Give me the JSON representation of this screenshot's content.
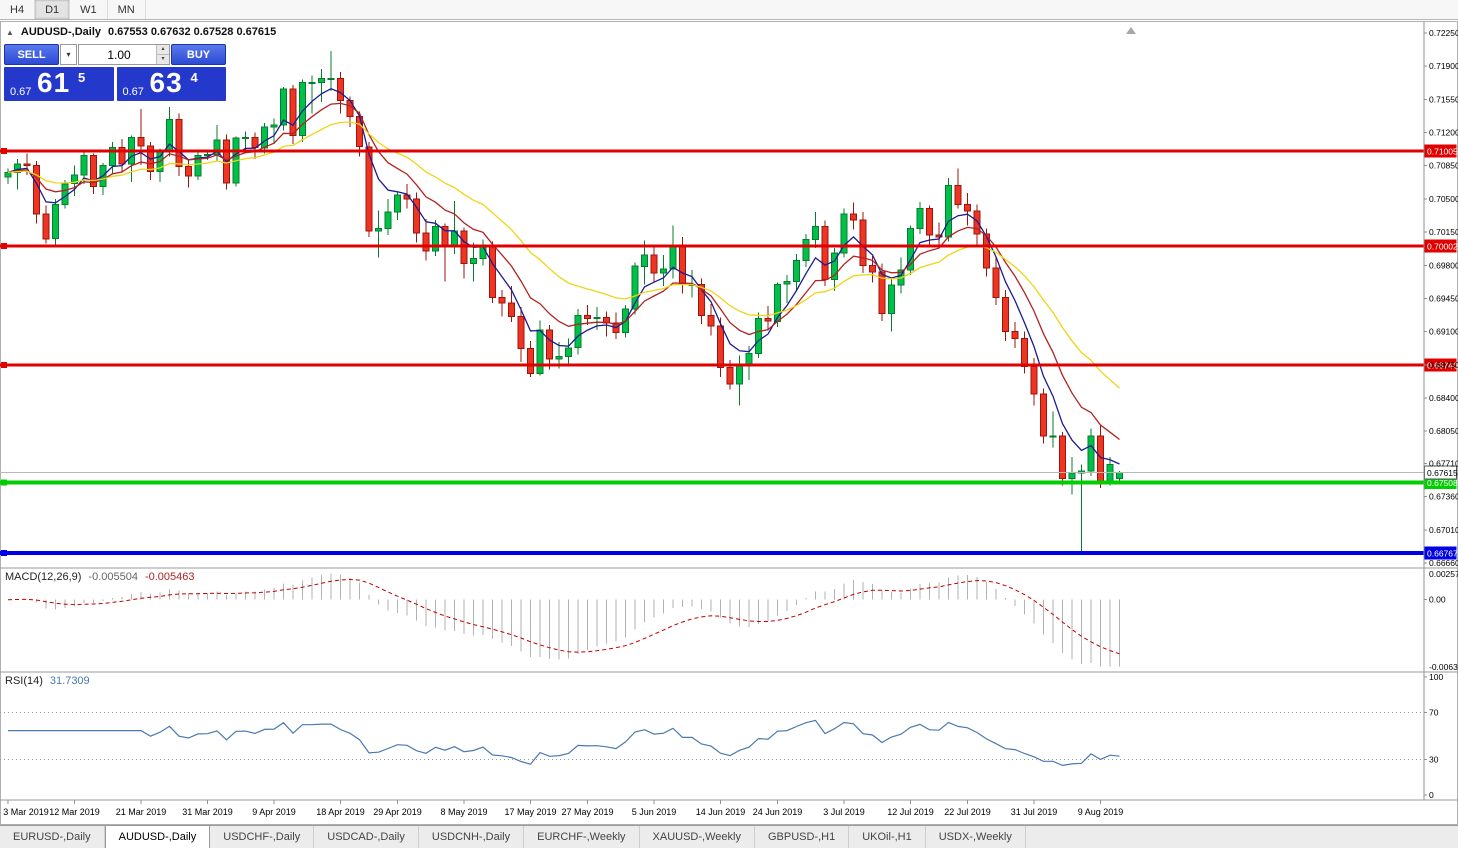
{
  "colors": {
    "candle_up_fill": "#00c04a",
    "candle_up_border": "#077c2e",
    "candle_down_fill": "#ee3524",
    "candle_down_border": "#9c150b",
    "ma_fast": "#1c1c90",
    "ma_mid": "#b22222",
    "ma_slow": "#efd417",
    "red_line": "#e00000",
    "green_line": "#00ce00",
    "blue_line": "#0000e6",
    "macd_bar": "#b2b2b2",
    "macd_signal": "#c00000",
    "rsi_line": "#4a7aad",
    "trade_blue": "#2438cc"
  },
  "toolbar": {
    "buttons": [
      {
        "label": "H4",
        "active": false
      },
      {
        "label": "D1",
        "active": true
      },
      {
        "label": "W1",
        "active": false
      },
      {
        "label": "MN",
        "active": false
      }
    ]
  },
  "symbol_header": {
    "symbol": "AUDUSD-,Daily",
    "ohlc": "0.67553 0.67632 0.67528 0.67615"
  },
  "one_click": {
    "sell_label": "SELL",
    "buy_label": "BUY",
    "volume": "1.00",
    "sell_price": {
      "prefix": "0.67",
      "big": "61",
      "sup": "5"
    },
    "buy_price": {
      "prefix": "0.67",
      "big": "63",
      "sup": "4"
    }
  },
  "indicators": {
    "macd": {
      "name": "MACD(12,26,9)",
      "main_value": "-0.005504",
      "signal_value": "-0.005463",
      "params": {
        "fast": 12,
        "slow": 26,
        "signal": 9
      },
      "axis_labels": {
        "top": "0.002574",
        "zero": "0.00",
        "bottom": "-0.006320"
      }
    },
    "rsi": {
      "name": "RSI(14)",
      "value": "31.7309",
      "period": 14,
      "levels": [
        70,
        30
      ],
      "axis_labels": [
        "100",
        "70",
        "30",
        "0"
      ]
    }
  },
  "tabs": {
    "items": [
      {
        "label": "EURUSD-,Daily",
        "active": false
      },
      {
        "label": "AUDUSD-,Daily",
        "active": true
      },
      {
        "label": "USDCHF-,Daily",
        "active": false
      },
      {
        "label": "USDCAD-,Daily",
        "active": false
      },
      {
        "label": "USDCNH-,Daily",
        "active": false
      },
      {
        "label": "EURCHF-,Weekly",
        "active": false
      },
      {
        "label": "XAUUSD-,Weekly",
        "active": false
      },
      {
        "label": "GBPUSD-,H1",
        "active": false
      },
      {
        "label": "UKOil-,H1",
        "active": false
      },
      {
        "label": "USDX-,Weekly",
        "active": false
      }
    ]
  },
  "chart_data": {
    "type": "candlestick",
    "title": "AUDUSD-,Daily",
    "current_price": {
      "value": 0.67615,
      "label": "0.67615"
    },
    "y_axis": {
      "top_value": 0.7225,
      "bottom_value": 0.6666,
      "step": 0.0035,
      "labels": [
        "0.72250",
        "0.71900",
        "0.71550",
        "0.71200",
        "0.70850",
        "0.70500",
        "0.70150",
        "0.69800",
        "0.69450",
        "0.69100",
        "0.68750",
        "0.68400",
        "0.68050",
        "0.67710",
        "0.67360",
        "0.67010",
        "0.66660"
      ]
    },
    "hlines": [
      {
        "price": 0.71005,
        "label": "0.71005",
        "color_key": "red_line",
        "width": 3
      },
      {
        "price": 0.70002,
        "label": "0.70002",
        "color_key": "red_line",
        "width": 3
      },
      {
        "price": 0.68746,
        "label": "0.68746",
        "color_key": "red_line",
        "width": 3
      },
      {
        "price": 0.67508,
        "label": "0.67508",
        "color_key": "green_line",
        "width": 4
      },
      {
        "price": 0.66767,
        "label": "0.66767",
        "color_key": "blue_line",
        "width": 4
      }
    ],
    "moving_averages": [
      {
        "type": "ema",
        "period": 5,
        "color_key": "ma_fast"
      },
      {
        "type": "ema",
        "period": 10,
        "color_key": "ma_mid"
      },
      {
        "type": "ema",
        "period": 21,
        "color_key": "ma_slow"
      }
    ],
    "x_labels": [
      {
        "text": "3 Mar 2019",
        "i": 0
      },
      {
        "text": "12 Mar 2019",
        "i": 7
      },
      {
        "text": "21 Mar 2019",
        "i": 14
      },
      {
        "text": "31 Mar 2019",
        "i": 21
      },
      {
        "text": "9 Apr 2019",
        "i": 28
      },
      {
        "text": "18 Apr 2019",
        "i": 35
      },
      {
        "text": "29 Apr 2019",
        "i": 41
      },
      {
        "text": "8 May 2019",
        "i": 48
      },
      {
        "text": "17 May 2019",
        "i": 55
      },
      {
        "text": "27 May 2019",
        "i": 61
      },
      {
        "text": "5 Jun 2019",
        "i": 68
      },
      {
        "text": "14 Jun 2019",
        "i": 75
      },
      {
        "text": "24 Jun 2019",
        "i": 81
      },
      {
        "text": "3 Jul 2019",
        "i": 88
      },
      {
        "text": "12 Jul 2019",
        "i": 95
      },
      {
        "text": "22 Jul 2019",
        "i": 101
      },
      {
        "text": "31 Jul 2019",
        "i": 108
      },
      {
        "text": "9 Aug 2019",
        "i": 115
      }
    ],
    "ohlc": [
      [
        0.7073,
        0.7082,
        0.7066,
        0.7078
      ],
      [
        0.7078,
        0.7092,
        0.706,
        0.7087
      ],
      [
        0.7087,
        0.7098,
        0.7075,
        0.7085
      ],
      [
        0.7085,
        0.709,
        0.7024,
        0.7034
      ],
      [
        0.7034,
        0.7043,
        0.7003,
        0.7008
      ],
      [
        0.7008,
        0.705,
        0.7002,
        0.7044
      ],
      [
        0.7044,
        0.707,
        0.704,
        0.7066
      ],
      [
        0.7066,
        0.7085,
        0.7053,
        0.7075
      ],
      [
        0.7075,
        0.7099,
        0.7066,
        0.7096
      ],
      [
        0.7096,
        0.7098,
        0.7055,
        0.7063
      ],
      [
        0.7063,
        0.7088,
        0.7054,
        0.7085
      ],
      [
        0.7085,
        0.711,
        0.7076,
        0.7104
      ],
      [
        0.7104,
        0.7113,
        0.7078,
        0.7087
      ],
      [
        0.7087,
        0.7117,
        0.7068,
        0.7115
      ],
      [
        0.7115,
        0.7145,
        0.7086,
        0.7106
      ],
      [
        0.7106,
        0.711,
        0.707,
        0.7079
      ],
      [
        0.7079,
        0.7103,
        0.7068,
        0.71
      ],
      [
        0.71,
        0.7147,
        0.7095,
        0.7134
      ],
      [
        0.7134,
        0.714,
        0.7074,
        0.7084
      ],
      [
        0.7084,
        0.7092,
        0.7062,
        0.7074
      ],
      [
        0.7074,
        0.71,
        0.707,
        0.7096
      ],
      [
        0.7096,
        0.7101,
        0.7091,
        0.7097
      ],
      [
        0.7097,
        0.7128,
        0.709,
        0.7112
      ],
      [
        0.7112,
        0.7118,
        0.706,
        0.7067
      ],
      [
        0.7067,
        0.7116,
        0.7063,
        0.7114
      ],
      [
        0.7114,
        0.7121,
        0.7098,
        0.7115
      ],
      [
        0.7115,
        0.712,
        0.7092,
        0.7104
      ],
      [
        0.7104,
        0.713,
        0.7098,
        0.7126
      ],
      [
        0.7126,
        0.7135,
        0.7108,
        0.7128
      ],
      [
        0.7128,
        0.7168,
        0.7122,
        0.7166
      ],
      [
        0.7166,
        0.717,
        0.7108,
        0.7117
      ],
      [
        0.7117,
        0.7176,
        0.711,
        0.7173
      ],
      [
        0.7173,
        0.718,
        0.714,
        0.7173
      ],
      [
        0.7173,
        0.7187,
        0.7152,
        0.7177
      ],
      [
        0.7177,
        0.7206,
        0.7164,
        0.7177
      ],
      [
        0.7177,
        0.7184,
        0.714,
        0.7154
      ],
      [
        0.7154,
        0.7158,
        0.7126,
        0.7137
      ],
      [
        0.7137,
        0.7142,
        0.7095,
        0.7105
      ],
      [
        0.7105,
        0.711,
        0.701,
        0.7016
      ],
      [
        0.7016,
        0.7038,
        0.6988,
        0.7019
      ],
      [
        0.7019,
        0.705,
        0.7012,
        0.7036
      ],
      [
        0.7036,
        0.7058,
        0.7028,
        0.7054
      ],
      [
        0.7054,
        0.7066,
        0.704,
        0.705
      ],
      [
        0.705,
        0.7057,
        0.7004,
        0.7014
      ],
      [
        0.7014,
        0.7029,
        0.6985,
        0.6995
      ],
      [
        0.6995,
        0.7028,
        0.699,
        0.7021
      ],
      [
        0.7021,
        0.7024,
        0.6963,
        0.7001
      ],
      [
        0.7001,
        0.7048,
        0.6992,
        0.7016
      ],
      [
        0.7016,
        0.702,
        0.6966,
        0.6982
      ],
      [
        0.6982,
        0.7004,
        0.6963,
        0.6987
      ],
      [
        0.6987,
        0.7007,
        0.698,
        0.7001
      ],
      [
        0.7001,
        0.7005,
        0.694,
        0.6946
      ],
      [
        0.6946,
        0.6954,
        0.6926,
        0.694
      ],
      [
        0.694,
        0.6958,
        0.692,
        0.6926
      ],
      [
        0.6926,
        0.6936,
        0.6878,
        0.6892
      ],
      [
        0.6892,
        0.69,
        0.6862,
        0.6866
      ],
      [
        0.6866,
        0.6922,
        0.6864,
        0.6912
      ],
      [
        0.6912,
        0.6917,
        0.687,
        0.6881
      ],
      [
        0.6881,
        0.6899,
        0.6871,
        0.6884
      ],
      [
        0.6884,
        0.6903,
        0.6875,
        0.6893
      ],
      [
        0.6893,
        0.6934,
        0.6886,
        0.6927
      ],
      [
        0.6927,
        0.6938,
        0.6917,
        0.6924
      ],
      [
        0.6924,
        0.6936,
        0.6912,
        0.6925
      ],
      [
        0.6925,
        0.6931,
        0.6905,
        0.6919
      ],
      [
        0.6919,
        0.693,
        0.6902,
        0.6909
      ],
      [
        0.6909,
        0.6938,
        0.6904,
        0.6934
      ],
      [
        0.6934,
        0.6983,
        0.6928,
        0.6979
      ],
      [
        0.6979,
        0.7006,
        0.696,
        0.6991
      ],
      [
        0.6991,
        0.7,
        0.6962,
        0.6972
      ],
      [
        0.6972,
        0.6991,
        0.6958,
        0.6976
      ],
      [
        0.6976,
        0.7022,
        0.6966,
        0.7
      ],
      [
        0.7,
        0.701,
        0.695,
        0.696
      ],
      [
        0.696,
        0.6975,
        0.6946,
        0.696
      ],
      [
        0.696,
        0.6966,
        0.6918,
        0.6927
      ],
      [
        0.6927,
        0.6939,
        0.6906,
        0.6916
      ],
      [
        0.6916,
        0.6925,
        0.6862,
        0.6872
      ],
      [
        0.6872,
        0.688,
        0.6849,
        0.6855
      ],
      [
        0.6855,
        0.6885,
        0.6832,
        0.6875
      ],
      [
        0.6875,
        0.6895,
        0.6859,
        0.6887
      ],
      [
        0.6887,
        0.693,
        0.6882,
        0.6924
      ],
      [
        0.6924,
        0.6937,
        0.6911,
        0.6921
      ],
      [
        0.6921,
        0.6962,
        0.6915,
        0.696
      ],
      [
        0.696,
        0.697,
        0.694,
        0.6963
      ],
      [
        0.6963,
        0.6992,
        0.6953,
        0.6985
      ],
      [
        0.6985,
        0.7013,
        0.6978,
        0.7007
      ],
      [
        0.7007,
        0.7036,
        0.6998,
        0.7021
      ],
      [
        0.7021,
        0.7027,
        0.6958,
        0.6965
      ],
      [
        0.6965,
        0.6998,
        0.6953,
        0.6993
      ],
      [
        0.6993,
        0.704,
        0.6988,
        0.7034
      ],
      [
        0.7034,
        0.7046,
        0.7018,
        0.7028
      ],
      [
        0.7028,
        0.7036,
        0.6972,
        0.698
      ],
      [
        0.698,
        0.699,
        0.6962,
        0.6973
      ],
      [
        0.6973,
        0.6982,
        0.6921,
        0.6929
      ],
      [
        0.6929,
        0.6965,
        0.691,
        0.6959
      ],
      [
        0.6959,
        0.6988,
        0.695,
        0.6975
      ],
      [
        0.6975,
        0.7022,
        0.697,
        0.7019
      ],
      [
        0.7019,
        0.7047,
        0.7013,
        0.704
      ],
      [
        0.704,
        0.7043,
        0.7001,
        0.7012
      ],
      [
        0.7012,
        0.7025,
        0.7,
        0.701
      ],
      [
        0.701,
        0.7072,
        0.7005,
        0.7064
      ],
      [
        0.7064,
        0.7082,
        0.704,
        0.7044
      ],
      [
        0.7044,
        0.7056,
        0.7022,
        0.7037
      ],
      [
        0.7037,
        0.7044,
        0.7002,
        0.7013
      ],
      [
        0.7013,
        0.7019,
        0.6968,
        0.6977
      ],
      [
        0.6977,
        0.6988,
        0.6938,
        0.6946
      ],
      [
        0.6946,
        0.6954,
        0.69,
        0.691
      ],
      [
        0.691,
        0.692,
        0.6893,
        0.6903
      ],
      [
        0.6903,
        0.691,
        0.6866,
        0.6873
      ],
      [
        0.6873,
        0.6882,
        0.6832,
        0.6844
      ],
      [
        0.6844,
        0.685,
        0.6792,
        0.68
      ],
      [
        0.68,
        0.6826,
        0.6788,
        0.68
      ],
      [
        0.68,
        0.6804,
        0.6748,
        0.6755
      ],
      [
        0.6755,
        0.6778,
        0.6738,
        0.6761
      ],
      [
        0.6761,
        0.677,
        0.6677,
        0.6763
      ],
      [
        0.6763,
        0.6808,
        0.6758,
        0.68
      ],
      [
        0.68,
        0.6812,
        0.6745,
        0.6752
      ],
      [
        0.6752,
        0.6778,
        0.6748,
        0.677
      ],
      [
        0.67553,
        0.67632,
        0.67528,
        0.67615
      ]
    ]
  }
}
